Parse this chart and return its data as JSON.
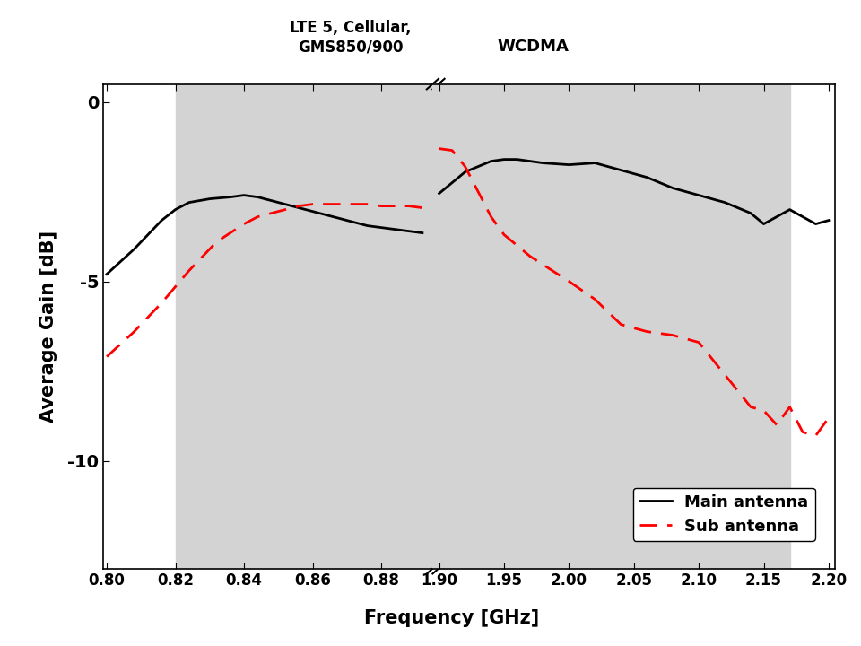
{
  "title": "",
  "xlabel": "Frequency [GHz]",
  "ylabel": "Average Gain [dB]",
  "ylim": [
    -13,
    0.5
  ],
  "yticks": [
    0,
    -5,
    -10
  ],
  "band1_label": "LTE 5, Cellular,\nGMS850/900",
  "band2_label": "WCDMA",
  "band_color": "#d3d3d3",
  "legend_entries": [
    "Main antenna",
    "Sub antenna"
  ],
  "main_x": [
    0.8,
    0.808,
    0.816,
    0.82,
    0.824,
    0.83,
    0.836,
    0.84,
    0.844,
    0.848,
    0.852,
    0.856,
    0.86,
    0.864,
    0.868,
    0.872,
    0.876,
    0.88,
    0.884,
    0.888,
    0.892,
    1.9,
    1.92,
    1.94,
    1.95,
    1.96,
    1.97,
    1.98,
    2.0,
    2.02,
    2.04,
    2.06,
    2.08,
    2.1,
    2.12,
    2.14,
    2.15,
    2.16,
    2.17,
    2.18,
    2.19,
    2.2
  ],
  "main_y": [
    -4.8,
    -4.1,
    -3.3,
    -3.0,
    -2.8,
    -2.7,
    -2.65,
    -2.6,
    -2.65,
    -2.75,
    -2.85,
    -2.95,
    -3.05,
    -3.15,
    -3.25,
    -3.35,
    -3.45,
    -3.5,
    -3.55,
    -3.6,
    -3.65,
    -2.55,
    -1.95,
    -1.65,
    -1.6,
    -1.6,
    -1.65,
    -1.7,
    -1.75,
    -1.7,
    -1.9,
    -2.1,
    -2.4,
    -2.6,
    -2.8,
    -3.1,
    -3.4,
    -3.2,
    -3.0,
    -3.2,
    -3.4,
    -3.3
  ],
  "sub_x": [
    0.8,
    0.808,
    0.816,
    0.824,
    0.832,
    0.84,
    0.844,
    0.848,
    0.852,
    0.856,
    0.86,
    0.864,
    0.868,
    0.872,
    0.876,
    0.88,
    0.884,
    0.888,
    0.892,
    1.9,
    1.91,
    1.92,
    1.93,
    1.94,
    1.95,
    1.96,
    1.97,
    2.0,
    2.02,
    2.04,
    2.06,
    2.08,
    2.1,
    2.12,
    2.14,
    2.15,
    2.16,
    2.17,
    2.18,
    2.19,
    2.2
  ],
  "sub_y": [
    -7.1,
    -6.4,
    -5.6,
    -4.7,
    -3.9,
    -3.4,
    -3.2,
    -3.1,
    -3.0,
    -2.9,
    -2.85,
    -2.85,
    -2.85,
    -2.85,
    -2.85,
    -2.9,
    -2.9,
    -2.9,
    -2.95,
    -1.3,
    -1.35,
    -1.8,
    -2.5,
    -3.2,
    -3.7,
    -4.0,
    -4.3,
    -5.0,
    -5.5,
    -6.2,
    -6.4,
    -6.5,
    -6.7,
    -7.6,
    -8.5,
    -8.6,
    -9.0,
    -8.5,
    -9.2,
    -9.3,
    -8.8
  ],
  "seg1_xmin": 0.799,
  "seg1_xmax": 0.895,
  "seg2_xmin": 1.895,
  "seg2_xmax": 2.205,
  "band1_xstart": 0.82,
  "band1_xend": 0.895,
  "band2_xstart": 1.895,
  "band2_xend": 2.17,
  "xticks1": [
    0.8,
    0.82,
    0.84,
    0.86,
    0.88
  ],
  "xticks2": [
    1.9,
    1.95,
    2.0,
    2.05,
    2.1,
    2.15,
    2.2
  ],
  "xlabels1": [
    "0.80",
    "0.82",
    "0.84",
    "0.86",
    "0.88"
  ],
  "xlabels2": [
    "1.90",
    "1.95",
    "2.00",
    "2.05",
    "2.10",
    "2.15",
    "2.20"
  ]
}
